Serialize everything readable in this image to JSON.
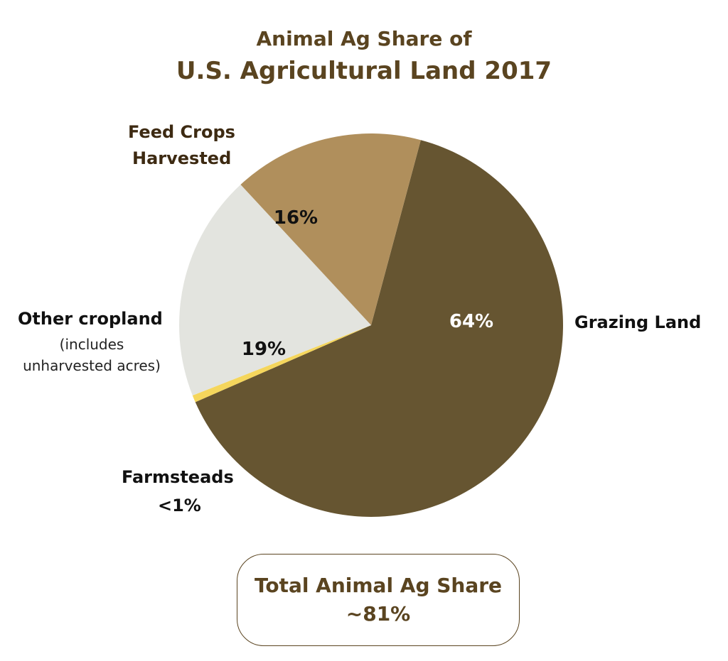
{
  "title": {
    "line1": "Animal Ag Share of",
    "line2": "U.S. Agricultural Land 2017"
  },
  "chart_data": {
    "type": "pie",
    "start_angle_deg": 15,
    "slices": [
      {
        "name": "Grazing Land",
        "value": 64,
        "label": "64%",
        "color": "#665531"
      },
      {
        "name": "Farmsteads",
        "value": 0.6,
        "label": "<1%",
        "color": "#f5d65c"
      },
      {
        "name": "Other cropland",
        "value": 19,
        "label": "19%",
        "color": "#e3e4df"
      },
      {
        "name": "Feed Crops Harvested",
        "value": 16,
        "label": "16%",
        "color": "#b08f5c"
      }
    ],
    "labels": {
      "grazing": "Grazing Land",
      "feed_line1": "Feed Crops",
      "feed_line2": "Harvested",
      "other": "Other cropland",
      "other_note_line1": "(includes",
      "other_note_line2": "unharvested acres)",
      "farm_line1": "Farmsteads",
      "farm_line2": "<1%"
    }
  },
  "total": {
    "label": "Total Animal Ag Share",
    "value": "~81%"
  }
}
